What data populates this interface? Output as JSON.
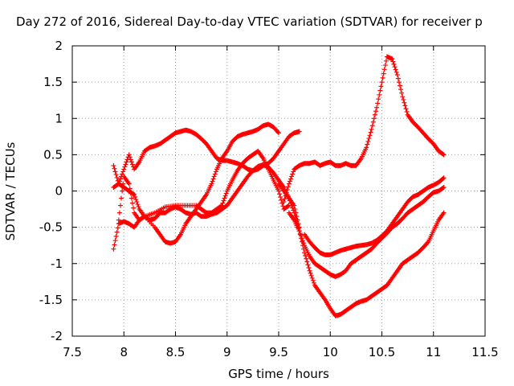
{
  "chart_data": {
    "type": "scatter",
    "title": "Day 272 of 2016, Sidereal Day-to-day VTEC variation (SDTVAR) for receiver p",
    "xlabel": "GPS time / hours",
    "ylabel": "SDTVAR / TECUs",
    "xlim": [
      7.5,
      11.5
    ],
    "ylim": [
      -2,
      2
    ],
    "xticks": [
      "7.5",
      "8",
      "8.5",
      "9",
      "9.5",
      "10",
      "10.5",
      "11",
      "11.5"
    ],
    "yticks": [
      "-2",
      "-1.5",
      "-1",
      "-0.5",
      "0",
      "0.5",
      "1",
      "1.5",
      "2"
    ],
    "grid": true,
    "marker": "+",
    "color": "#ff0000",
    "series": [
      {
        "x": [
          7.9,
          7.95,
          8.0,
          8.05,
          8.1,
          8.15,
          8.2,
          8.25,
          8.3,
          8.35,
          8.4,
          8.45,
          8.5,
          8.55,
          8.6,
          8.65,
          8.7,
          8.75,
          8.8,
          8.85,
          8.9,
          8.95,
          9.0,
          9.05,
          9.1,
          9.15,
          9.2,
          9.25,
          9.3,
          9.35,
          9.4,
          9.45,
          9.5,
          9.55,
          9.6,
          9.65,
          9.7
        ],
        "y": [
          0.35,
          0.1,
          0.3,
          0.5,
          0.3,
          0.4,
          0.55,
          0.6,
          0.62,
          0.65,
          0.7,
          0.75,
          0.8,
          0.82,
          0.84,
          0.82,
          0.78,
          0.72,
          0.65,
          0.55,
          0.45,
          0.42,
          0.42,
          0.4,
          0.38,
          0.35,
          0.3,
          0.28,
          0.3,
          0.35,
          0.38,
          0.45,
          0.55,
          0.65,
          0.75,
          0.8,
          0.82
        ]
      },
      {
        "x": [
          7.9,
          7.95,
          8.0,
          8.05,
          8.1,
          8.15,
          8.2,
          8.3,
          8.4,
          8.5,
          8.6,
          8.7,
          8.75,
          8.8,
          8.85,
          8.9,
          8.95,
          9.0,
          9.05,
          9.1,
          9.15,
          9.2,
          9.25,
          9.3,
          9.35,
          9.4,
          9.45,
          9.5,
          9.55,
          9.6
        ],
        "y": [
          -0.8,
          -0.45,
          -0.42,
          -0.45,
          -0.5,
          -0.4,
          -0.35,
          -0.3,
          -0.22,
          -0.2,
          -0.2,
          -0.2,
          -0.25,
          -0.3,
          -0.3,
          -0.25,
          -0.2,
          0.0,
          0.15,
          0.28,
          0.38,
          0.45,
          0.5,
          0.55,
          0.45,
          0.3,
          0.15,
          0.0,
          -0.25,
          -0.2
        ]
      },
      {
        "x": [
          7.9,
          7.95,
          8.0,
          8.05,
          8.1,
          8.15,
          8.2,
          8.3,
          8.35,
          8.4,
          8.45,
          8.5,
          8.55,
          8.6,
          8.65,
          8.7,
          8.75,
          8.8,
          8.85,
          8.9,
          8.95,
          9.0,
          9.05,
          9.1,
          9.15,
          9.2,
          9.25,
          9.3,
          9.35,
          9.4,
          9.45,
          9.5
        ],
        "y": [
          0.05,
          0.1,
          0.05,
          0.0,
          -0.05,
          -0.25,
          -0.35,
          -0.5,
          -0.6,
          -0.7,
          -0.72,
          -0.7,
          -0.6,
          -0.45,
          -0.35,
          -0.25,
          -0.15,
          -0.05,
          0.1,
          0.3,
          0.45,
          0.55,
          0.68,
          0.75,
          0.78,
          0.8,
          0.82,
          0.85,
          0.9,
          0.92,
          0.88,
          0.8
        ]
      },
      {
        "x": [
          7.95,
          8.0,
          8.05,
          8.1,
          8.15,
          8.2,
          8.25,
          8.3,
          8.35,
          8.4,
          8.45,
          8.5,
          8.55,
          8.6,
          8.65,
          8.7,
          8.75,
          8.8,
          8.85,
          8.9,
          8.95,
          9.0,
          9.05,
          9.1,
          9.15,
          9.2,
          9.25,
          9.3,
          9.35,
          9.4,
          9.45,
          9.5,
          9.55,
          9.6,
          9.65,
          9.7
        ],
        "y": [
          -0.4,
          0.2,
          0.1,
          -0.3,
          -0.4,
          -0.35,
          -0.4,
          -0.38,
          -0.3,
          -0.3,
          -0.25,
          -0.22,
          -0.25,
          -0.3,
          -0.32,
          -0.3,
          -0.35,
          -0.35,
          -0.32,
          -0.3,
          -0.25,
          -0.2,
          -0.1,
          0.0,
          0.1,
          0.2,
          0.28,
          0.34,
          0.36,
          0.33,
          0.25,
          0.15,
          0.05,
          -0.1,
          -0.2,
          -0.5
        ]
      },
      {
        "x": [
          9.55,
          9.6,
          9.65,
          9.7,
          9.75,
          9.8,
          9.85,
          9.9,
          9.95,
          10.0,
          10.05,
          10.1,
          10.15,
          10.2,
          10.25,
          10.3,
          10.35,
          10.4,
          10.45,
          10.5,
          10.55,
          10.6,
          10.65,
          10.7,
          10.75,
          10.8,
          10.85,
          10.9,
          10.95,
          11.0,
          11.05,
          11.1
        ],
        "y": [
          -0.15,
          0.1,
          0.3,
          0.35,
          0.38,
          0.38,
          0.4,
          0.35,
          0.38,
          0.4,
          0.35,
          0.35,
          0.38,
          0.35,
          0.35,
          0.45,
          0.6,
          0.85,
          1.15,
          1.5,
          1.85,
          1.82,
          1.6,
          1.3,
          1.05,
          0.95,
          0.88,
          0.8,
          0.72,
          0.65,
          0.55,
          0.5
        ]
      },
      {
        "x": [
          9.6,
          9.65,
          9.7,
          9.75,
          9.8,
          9.85,
          9.9,
          9.95,
          10.0,
          10.05,
          10.1,
          10.15,
          10.2,
          10.25,
          10.3,
          10.35,
          10.4,
          10.45,
          10.5,
          10.55,
          10.6,
          10.65,
          10.7,
          10.75,
          10.8,
          10.85,
          10.9,
          10.95,
          11.0,
          11.05,
          11.1
        ],
        "y": [
          -0.3,
          -0.4,
          -0.55,
          -0.75,
          -0.9,
          -1.0,
          -1.05,
          -1.1,
          -1.15,
          -1.18,
          -1.15,
          -1.1,
          -1.0,
          -0.95,
          -0.9,
          -0.85,
          -0.8,
          -0.72,
          -0.65,
          -0.58,
          -0.5,
          -0.45,
          -0.38,
          -0.3,
          -0.25,
          -0.2,
          -0.15,
          -0.08,
          -0.02,
          0.0,
          0.05
        ]
      },
      {
        "x": [
          9.5,
          9.55,
          9.6,
          9.65,
          9.7,
          9.75,
          9.8,
          9.85,
          9.9,
          9.95,
          10.0,
          10.05,
          10.1,
          10.15,
          10.2,
          10.25,
          10.3,
          10.35,
          10.4,
          10.45,
          10.5,
          10.55,
          10.6,
          10.65,
          10.7,
          10.75,
          10.8,
          10.85,
          10.9,
          10.95,
          11.0,
          11.05,
          11.1
        ],
        "y": [
          0.1,
          0.0,
          -0.1,
          -0.3,
          -0.55,
          -0.85,
          -1.1,
          -1.3,
          -1.4,
          -1.5,
          -1.62,
          -1.72,
          -1.7,
          -1.65,
          -1.6,
          -1.55,
          -1.52,
          -1.5,
          -1.45,
          -1.4,
          -1.35,
          -1.3,
          -1.2,
          -1.1,
          -1.0,
          -0.95,
          -0.9,
          -0.85,
          -0.78,
          -0.7,
          -0.55,
          -0.4,
          -0.3
        ]
      },
      {
        "x": [
          9.75,
          9.8,
          9.85,
          9.9,
          9.95,
          10.0,
          10.05,
          10.1,
          10.15,
          10.2,
          10.25,
          10.3,
          10.35,
          10.4,
          10.45,
          10.5,
          10.55,
          10.6,
          10.65,
          10.7,
          10.75,
          10.8,
          10.85,
          10.9,
          10.95,
          11.0,
          11.05,
          11.1
        ],
        "y": [
          -0.6,
          -0.7,
          -0.78,
          -0.85,
          -0.88,
          -0.88,
          -0.85,
          -0.82,
          -0.8,
          -0.78,
          -0.76,
          -0.75,
          -0.74,
          -0.72,
          -0.68,
          -0.62,
          -0.55,
          -0.45,
          -0.35,
          -0.25,
          -0.15,
          -0.08,
          -0.05,
          0.0,
          0.05,
          0.08,
          0.12,
          0.18
        ]
      }
    ]
  }
}
